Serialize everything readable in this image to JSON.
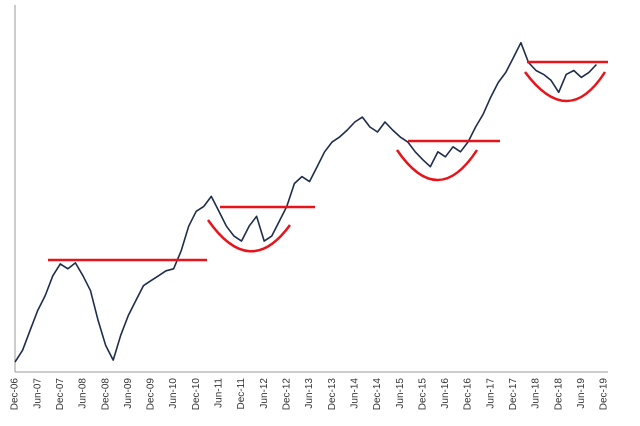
{
  "chart_data": {
    "type": "line",
    "categories": [
      "Dec-06",
      null,
      null,
      "Jun-07",
      null,
      null,
      "Dec-07",
      null,
      null,
      "Jun-08",
      null,
      null,
      "Dec-08",
      null,
      null,
      "Jun-09",
      null,
      null,
      "Dec-09",
      null,
      null,
      "Jun-10",
      null,
      null,
      "Dec-10",
      null,
      null,
      "Jun-11",
      null,
      null,
      "Dec-11",
      null,
      null,
      "Jun-12",
      null,
      null,
      "Dec-12",
      null,
      null,
      "Jun-13",
      null,
      null,
      "Dec-13",
      null,
      null,
      "Jun-14",
      null,
      null,
      "Dec-14",
      null,
      null,
      "Jun-15",
      null,
      null,
      "Dec-15",
      null,
      null,
      "Jun-16",
      null,
      null,
      "Dec-16",
      null,
      null,
      "Jun-17",
      null,
      null,
      "Dec-17",
      null,
      null,
      "Jun-18",
      null,
      null,
      "Dec-18",
      null,
      null,
      "Jun-19",
      null,
      null,
      "Dec-19"
    ],
    "series": [
      {
        "color": "#1f2d4d",
        "values": [
          10,
          22,
          42,
          62,
          77,
          97,
          109,
          104,
          110,
          97,
          82,
          52,
          27,
          12,
          37,
          57,
          72,
          87,
          92,
          97,
          102,
          104,
          122,
          147,
          162,
          167,
          177,
          162,
          147,
          137,
          132,
          147,
          157,
          132,
          137,
          152,
          167,
          190,
          197,
          192,
          207,
          222,
          232,
          237,
          244,
          252,
          257,
          247,
          242,
          252,
          244,
          237,
          232,
          222,
          214,
          207,
          222,
          217,
          227,
          222,
          232,
          247,
          260,
          277,
          292,
          302,
          317,
          332,
          312,
          304,
          300,
          294,
          282,
          300,
          304,
          297,
          302,
          310,
          null
        ]
      }
    ],
    "ylim": [
      0,
      370
    ]
  }
}
